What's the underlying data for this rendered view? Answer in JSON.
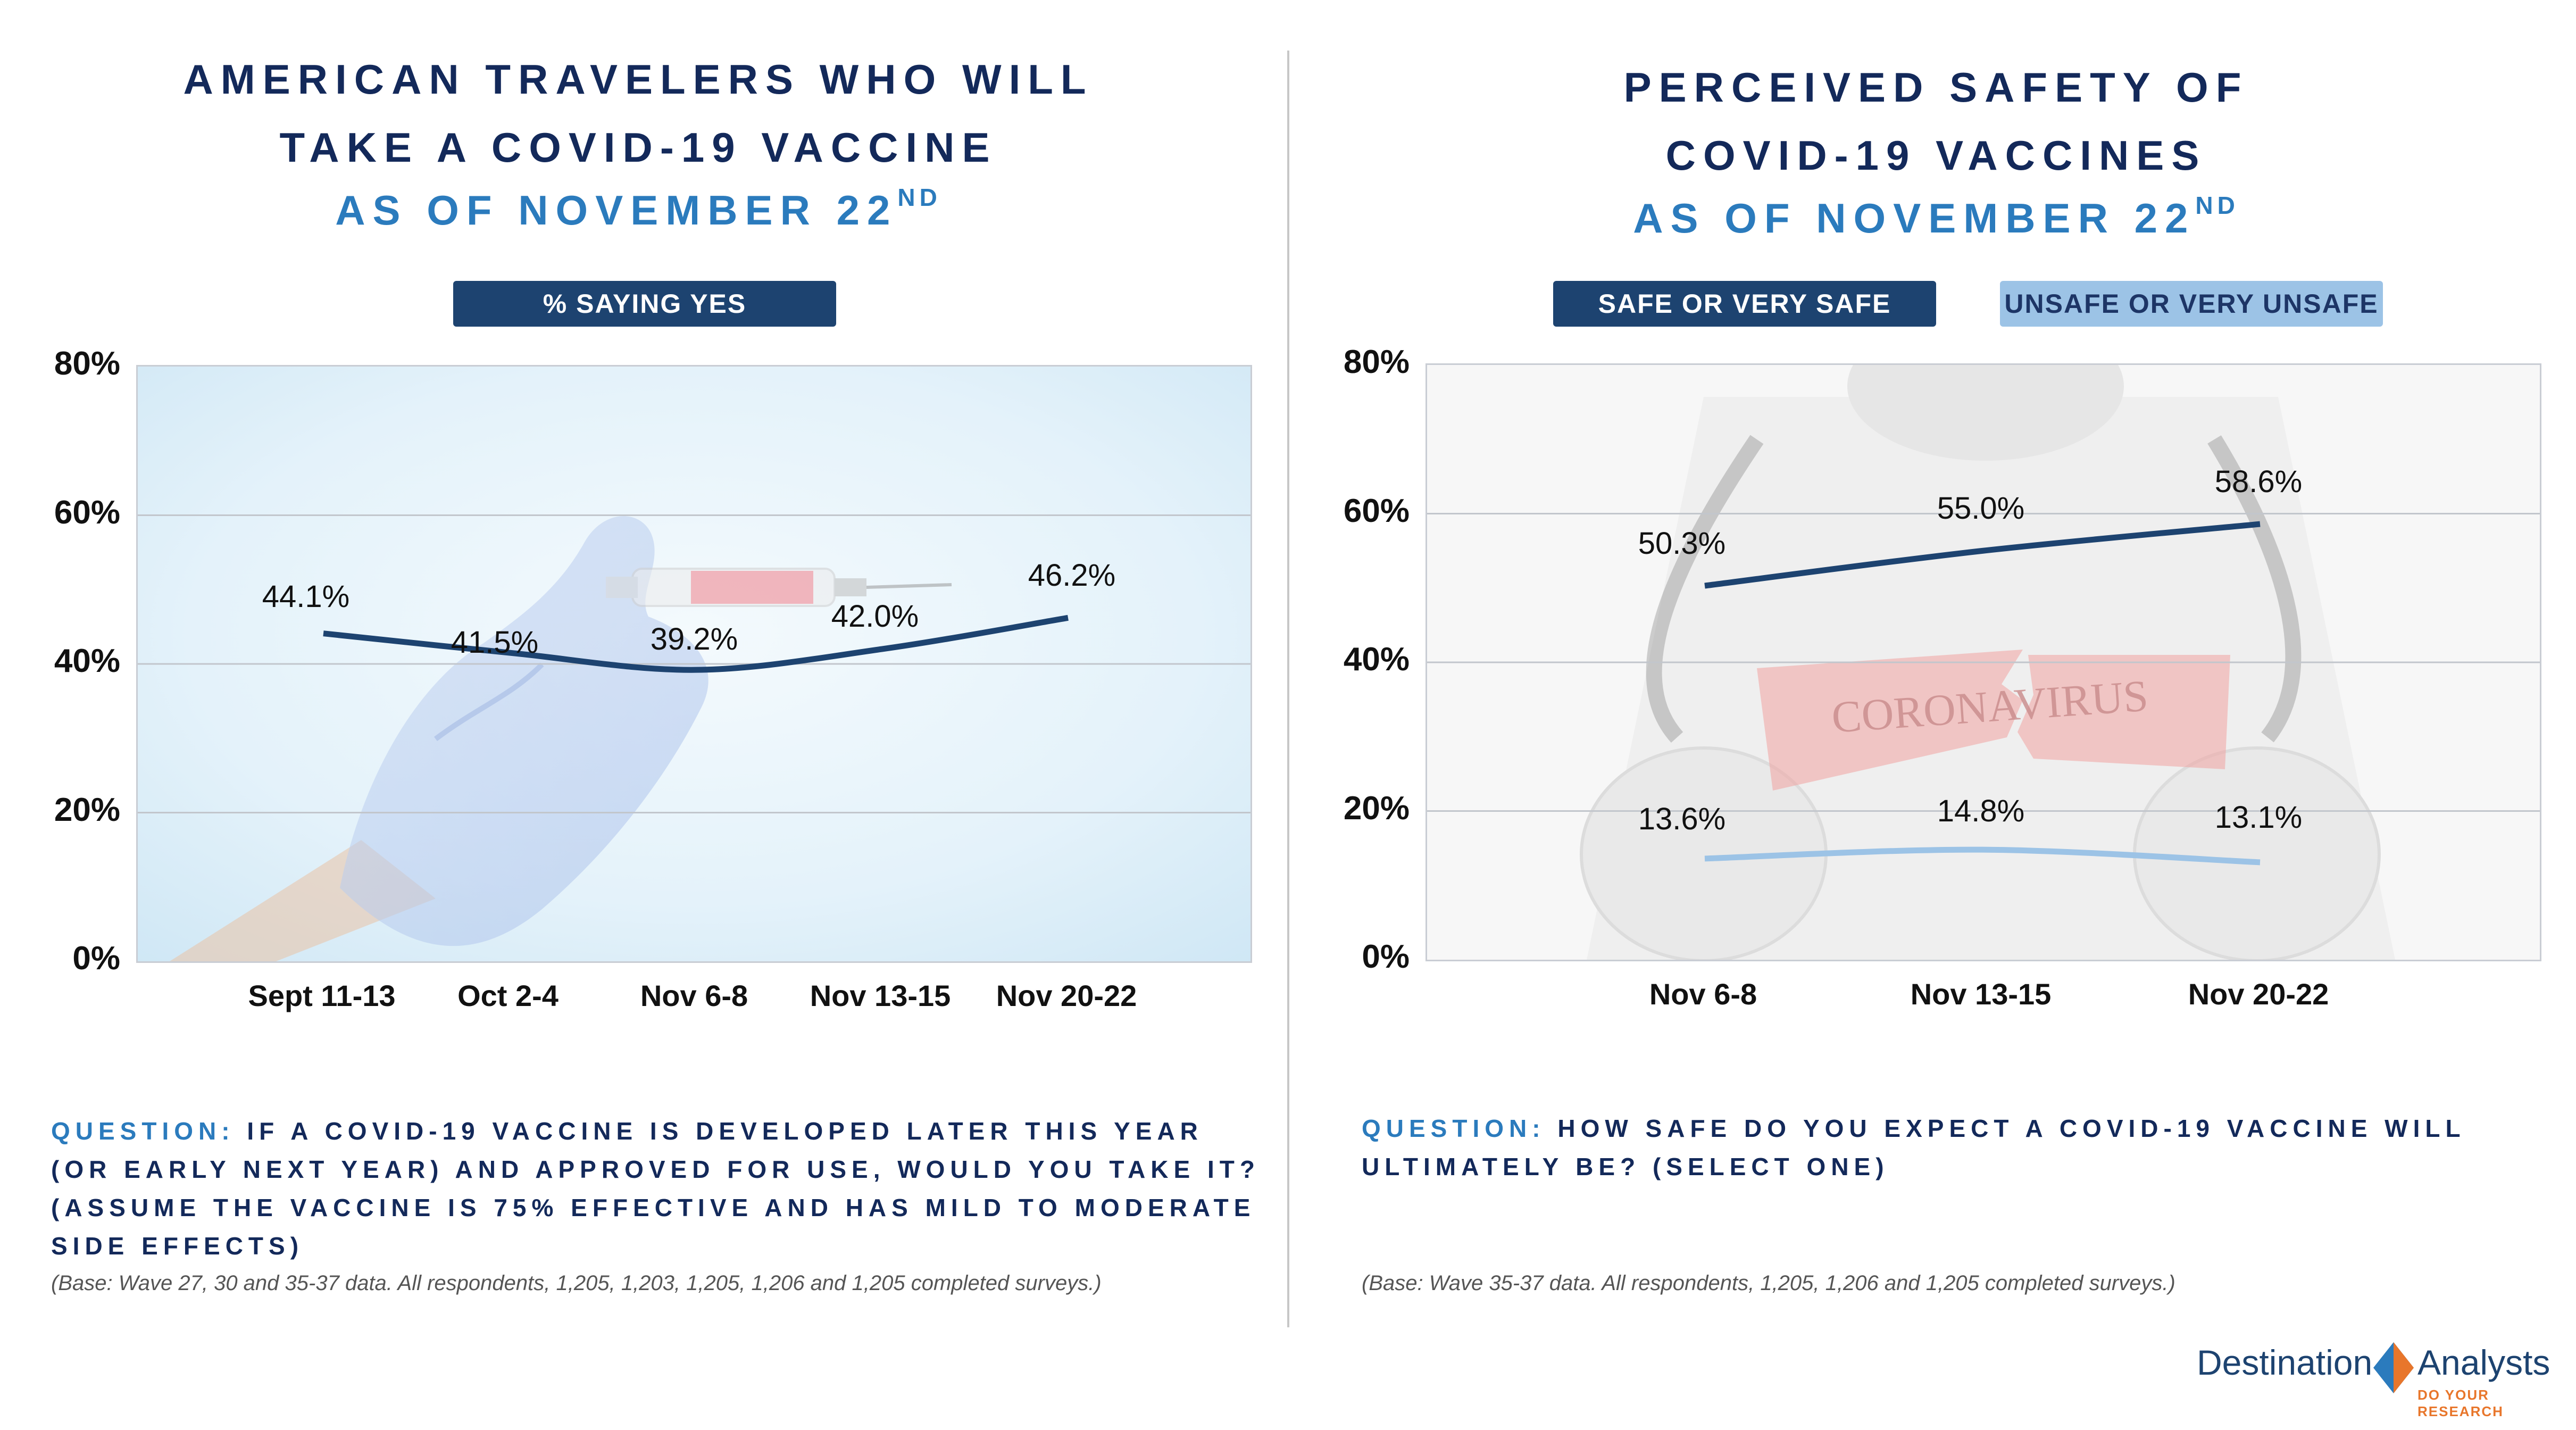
{
  "left": {
    "title_lines": [
      "AMERICAN TRAVELERS WHO WILL",
      "TAKE A COVID-19 VACCINE"
    ],
    "subtitle": "AS OF NOVEMBER 22",
    "subtitle_sup": "ND",
    "legend": "% SAYING YES",
    "question_prefix": "QUESTION:",
    "question_text": "IF A COVID-19 VACCINE IS DEVELOPED LATER THIS YEAR (OR EARLY NEXT YEAR) AND APPROVED FOR USE, WOULD YOU TAKE IT? (ASSUME THE VACCINE IS 75% EFFECTIVE AND HAS MILD TO MODERATE SIDE EFFECTS)",
    "base": "(Base: Wave 27, 30 and 35-37 data. All respondents, 1,205, 1,203, 1,205, 1,206 and 1,205 completed surveys.)"
  },
  "right": {
    "title_lines": [
      "PERCEIVED SAFETY OF",
      "COVID-19 VACCINES"
    ],
    "subtitle": "AS OF NOVEMBER 22",
    "subtitle_sup": "ND",
    "legend_safe": "SAFE OR VERY SAFE",
    "legend_unsafe": "UNSAFE OR VERY UNSAFE",
    "background_text": "CORONAVIRUS",
    "question_prefix": "QUESTION:",
    "question_text": "HOW SAFE DO YOU EXPECT A COVID-19 VACCINE WILL ULTIMATELY BE? (SELECT ONE)",
    "base": "(Base: Wave 35-37 data. All respondents, 1,205, 1,206 and 1,205 completed surveys.)"
  },
  "logo": {
    "name_part1": "Destination",
    "name_part2": "Analysts",
    "tagline": "DO YOUR RESEARCH"
  },
  "colors": {
    "navy": "#1d4370",
    "light_blue": "#9cc3e6",
    "title": "#13295a",
    "subtitle": "#2b7bbd",
    "logo_orange": "#e8762b"
  },
  "chart_data": [
    {
      "type": "line",
      "categories": [
        "Sept 11-13",
        "Oct 2-4",
        "Nov 6-8",
        "Nov 13-15",
        "Nov 20-22"
      ],
      "series": [
        {
          "name": "% SAYING YES",
          "values": [
            44.1,
            41.5,
            39.2,
            42.0,
            46.2
          ],
          "labels": [
            "44.1%",
            "41.5%",
            "39.2%",
            "42.0%",
            "46.2%"
          ]
        }
      ],
      "yticks": [
        "0%",
        "20%",
        "40%",
        "60%",
        "80%"
      ],
      "ylim": [
        0,
        80
      ],
      "grid": true
    },
    {
      "type": "line",
      "categories": [
        "Nov 6-8",
        "Nov 13-15",
        "Nov 20-22"
      ],
      "series": [
        {
          "name": "SAFE OR VERY SAFE",
          "values": [
            50.3,
            55.0,
            58.6
          ],
          "labels": [
            "50.3%",
            "55.0%",
            "58.6%"
          ]
        },
        {
          "name": "UNSAFE OR VERY UNSAFE",
          "values": [
            13.6,
            14.8,
            13.1
          ],
          "labels": [
            "13.6%",
            "14.8%",
            "13.1%"
          ]
        }
      ],
      "yticks": [
        "0%",
        "20%",
        "40%",
        "60%",
        "80%"
      ],
      "ylim": [
        0,
        80
      ],
      "grid": true
    }
  ]
}
